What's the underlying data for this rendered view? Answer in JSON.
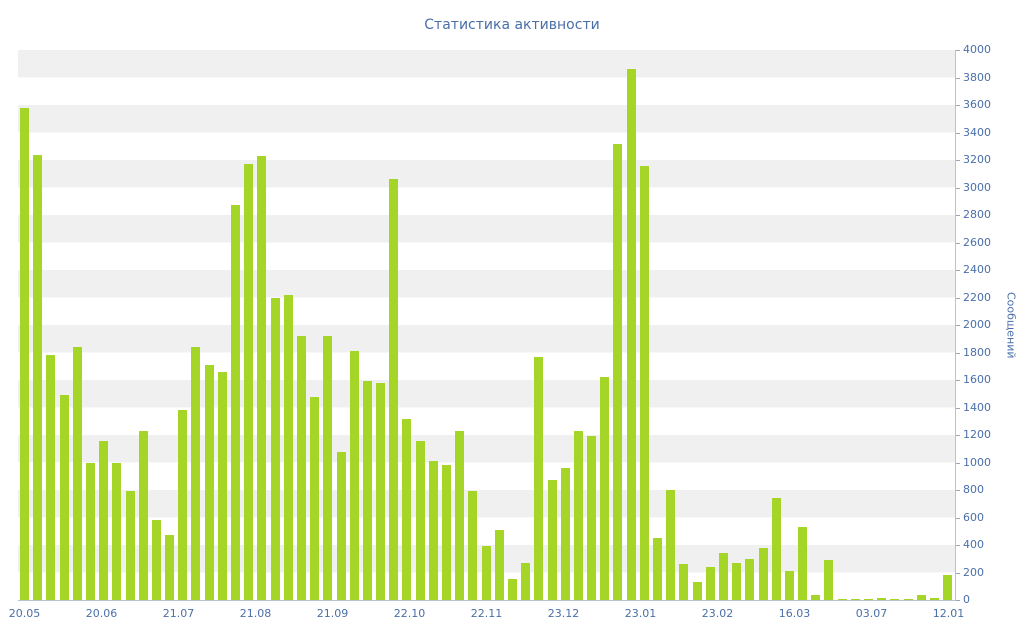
{
  "colors": {
    "bar": "#a5d627",
    "text": "#4a6fa8",
    "stripe": "#f0f0f0",
    "axis": "#b9c2ce"
  },
  "chart_data": {
    "type": "bar",
    "title": "Статистика активности",
    "ylabel": "Сообщений",
    "xlabel": "",
    "ylim": [
      0,
      4000
    ],
    "grid": "horizontal-stripes",
    "legend": "none",
    "y_ticks": [
      0,
      200,
      400,
      600,
      800,
      1000,
      1200,
      1400,
      1600,
      1800,
      2000,
      2200,
      2400,
      2600,
      2800,
      3000,
      3200,
      3400,
      3600,
      3800,
      4000
    ],
    "x_tick_labels": [
      "20.05",
      "20.06",
      "21.07",
      "21.08",
      "21.09",
      "22.10",
      "22.11",
      "23.12",
      "23.01",
      "23.02",
      "16.03",
      "03.07",
      "12.01"
    ],
    "values": [
      3580,
      3240,
      1780,
      1490,
      1840,
      1000,
      1160,
      1000,
      790,
      1230,
      580,
      470,
      1380,
      1840,
      1710,
      1660,
      2870,
      3170,
      3230,
      2200,
      2220,
      1920,
      1480,
      1920,
      1080,
      1810,
      1590,
      1580,
      3060,
      1320,
      1160,
      1010,
      980,
      1230,
      790,
      390,
      510,
      150,
      270,
      1770,
      870,
      960,
      1230,
      1190,
      1620,
      3320,
      3860,
      3160,
      450,
      800,
      260,
      130,
      240,
      340,
      270,
      300,
      380,
      740,
      210,
      530,
      40,
      290,
      10,
      10,
      10,
      15,
      10,
      10,
      40,
      15,
      180
    ]
  }
}
